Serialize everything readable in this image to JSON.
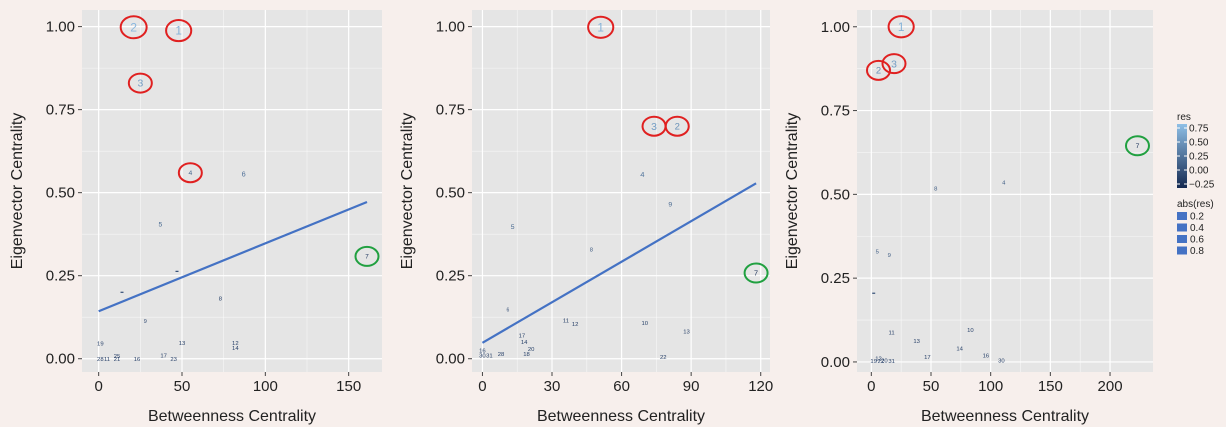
{
  "chart_data": [
    {
      "type": "scatter",
      "xlabel": "Betweenness Centrality",
      "ylabel": "Eigenvector Centrality",
      "xlim": [
        -10,
        170
      ],
      "ylim": [
        -0.04,
        1.05
      ],
      "x_ticks": [
        0,
        50,
        100,
        150
      ],
      "y_ticks": [
        0,
        0.25,
        0.5,
        0.75,
        1
      ],
      "grid": true,
      "trend_line": {
        "x": [
          0,
          161
        ],
        "y": [
          0.143,
          0.472
        ],
        "color": "#4472c4"
      },
      "points": [
        {
          "label": "2",
          "x": 21,
          "y": 0.998,
          "res": 0.8,
          "circle": "red"
        },
        {
          "label": "1",
          "x": 48,
          "y": 0.988,
          "res": 0.75,
          "circle": "red"
        },
        {
          "label": "3",
          "x": 25,
          "y": 0.83,
          "res": 0.6,
          "circle": "red"
        },
        {
          "label": "4",
          "x": 55,
          "y": 0.56,
          "res": 0.2,
          "circle": "red"
        },
        {
          "label": "6",
          "x": 87,
          "y": 0.557,
          "res": 0.25
        },
        {
          "label": "7",
          "x": 161,
          "y": 0.308,
          "res": -0.15,
          "circle": "green"
        },
        {
          "label": "5",
          "x": 37,
          "y": 0.405,
          "res": 0.2
        },
        {
          "label": "",
          "x": 47,
          "y": 0.263,
          "res": 0
        },
        {
          "label": "",
          "x": 14,
          "y": 0.2,
          "res": 0
        },
        {
          "label": "8",
          "x": 73,
          "y": 0.182,
          "res": -0.1
        },
        {
          "label": "9",
          "x": 28,
          "y": 0.113,
          "res": -0.05
        },
        {
          "label": "13",
          "x": 50,
          "y": 0.048,
          "res": -0.1
        },
        {
          "label": "12",
          "x": 82,
          "y": 0.048,
          "res": -0.1
        },
        {
          "label": "14",
          "x": 82,
          "y": 0.032,
          "res": -0.1
        },
        {
          "label": "19",
          "x": 1,
          "y": 0.046,
          "res": -0.1
        },
        {
          "label": "17",
          "x": 39,
          "y": 0.01,
          "res": -0.1
        },
        {
          "label": "16",
          "x": 23,
          "y": 0,
          "res": -0.1
        },
        {
          "label": "23",
          "x": 45,
          "y": 0,
          "res": -0.1
        },
        {
          "label": "21",
          "x": 11,
          "y": 0,
          "res": -0.1
        },
        {
          "label": "28",
          "x": 1,
          "y": 0,
          "res": -0.1
        },
        {
          "label": "11",
          "x": 5,
          "y": 0,
          "res": -0.1
        },
        {
          "label": "25",
          "x": 11,
          "y": 0.008,
          "res": -0.1
        }
      ]
    },
    {
      "type": "scatter",
      "xlabel": "Betweenness Centrality",
      "ylabel": "Eigenvector Centrality",
      "xlim": [
        -4.5,
        124
      ],
      "ylim": [
        -0.04,
        1.05
      ],
      "x_ticks": [
        0,
        30,
        60,
        90,
        120
      ],
      "y_ticks": [
        0,
        0.25,
        0.5,
        0.75,
        1
      ],
      "grid": true,
      "trend_line": {
        "x": [
          0,
          118
        ],
        "y": [
          0.048,
          0.528
        ],
        "color": "#4472c4"
      },
      "points": [
        {
          "label": "1",
          "x": 51,
          "y": 0.998,
          "res": 0.75,
          "circle": "red"
        },
        {
          "label": "3",
          "x": 74,
          "y": 0.7,
          "res": 0.6,
          "circle": "red"
        },
        {
          "label": "2",
          "x": 84,
          "y": 0.7,
          "res": 0.5,
          "circle": "red"
        },
        {
          "label": "4",
          "x": 69,
          "y": 0.555,
          "res": 0.3
        },
        {
          "label": "9",
          "x": 81,
          "y": 0.465,
          "res": 0.2
        },
        {
          "label": "5",
          "x": 13,
          "y": 0.398,
          "res": 0.2
        },
        {
          "label": "8",
          "x": 47,
          "y": 0.328,
          "res": 0.05
        },
        {
          "label": "7",
          "x": 118,
          "y": 0.258,
          "res": -0.25,
          "circle": "green"
        },
        {
          "label": "6",
          "x": 11,
          "y": 0.148,
          "res": 0
        },
        {
          "label": "11",
          "x": 36,
          "y": 0.115,
          "res": -0.1
        },
        {
          "label": "12",
          "x": 40,
          "y": 0.105,
          "res": -0.1
        },
        {
          "label": "10",
          "x": 70,
          "y": 0.108,
          "res": -0.1
        },
        {
          "label": "13",
          "x": 88,
          "y": 0.082,
          "res": -0.1
        },
        {
          "label": "17",
          "x": 17,
          "y": 0.07,
          "res": -0.1
        },
        {
          "label": "14",
          "x": 18,
          "y": 0.05,
          "res": -0.1
        },
        {
          "label": "20",
          "x": 21,
          "y": 0.03,
          "res": -0.1
        },
        {
          "label": "18",
          "x": 19,
          "y": 0.015,
          "res": -0.1
        },
        {
          "label": "22",
          "x": 78,
          "y": 0.005,
          "res": -0.1
        },
        {
          "label": "28",
          "x": 8,
          "y": 0.015,
          "res": -0.1
        },
        {
          "label": "16",
          "x": 0,
          "y": 0.025,
          "res": -0.1
        },
        {
          "label": "30",
          "x": 0,
          "y": 0.01,
          "res": -0.1
        },
        {
          "label": "31",
          "x": 3,
          "y": 0.01,
          "res": -0.1
        }
      ]
    },
    {
      "type": "scatter",
      "xlabel": "Betweenness Centrality",
      "ylabel": "Eigenvector Centrality",
      "xlim": [
        -12,
        236
      ],
      "ylim": [
        -0.03,
        1.05
      ],
      "x_ticks": [
        0,
        50,
        100,
        150,
        200
      ],
      "y_ticks": [
        0,
        0.25,
        0.5,
        0.75,
        1
      ],
      "grid": true,
      "points": [
        {
          "label": "1",
          "x": 25,
          "y": 1.0,
          "res": 0.75,
          "circle": "red"
        },
        {
          "label": "3",
          "x": 19,
          "y": 0.89,
          "res": 0.6,
          "circle": "red"
        },
        {
          "label": "2",
          "x": 6,
          "y": 0.87,
          "res": 0.5,
          "circle": "red"
        },
        {
          "label": "7",
          "x": 223,
          "y": 0.645,
          "res": -0.2,
          "circle": "green"
        },
        {
          "label": "4",
          "x": 111,
          "y": 0.535,
          "res": 0.1
        },
        {
          "label": "8",
          "x": 54,
          "y": 0.517,
          "res": 0.1
        },
        {
          "label": "5",
          "x": 5,
          "y": 0.33,
          "res": 0.1
        },
        {
          "label": "9",
          "x": 15,
          "y": 0.32,
          "res": 0.1
        },
        {
          "label": "",
          "x": 2,
          "y": 0.205,
          "res": 0
        },
        {
          "label": "11",
          "x": 17,
          "y": 0.088,
          "res": -0.1
        },
        {
          "label": "10",
          "x": 83,
          "y": 0.095,
          "res": -0.1
        },
        {
          "label": "13",
          "x": 38,
          "y": 0.063,
          "res": -0.1
        },
        {
          "label": "14",
          "x": 74,
          "y": 0.04,
          "res": -0.1
        },
        {
          "label": "17",
          "x": 47,
          "y": 0.015,
          "res": -0.1
        },
        {
          "label": "16",
          "x": 96,
          "y": 0.02,
          "res": -0.1
        },
        {
          "label": "30",
          "x": 109,
          "y": 0.005,
          "res": -0.1
        },
        {
          "label": "31",
          "x": 17,
          "y": 0.003,
          "res": -0.1
        },
        {
          "label": "19",
          "x": 2,
          "y": 0.003,
          "res": -0.1
        },
        {
          "label": "20",
          "x": 11,
          "y": 0.005,
          "res": -0.1
        },
        {
          "label": "22",
          "x": 8,
          "y": 0.003,
          "res": -0.1
        },
        {
          "label": "12",
          "x": 6,
          "y": 0.01,
          "res": -0.1
        }
      ]
    }
  ],
  "legend": {
    "res_title": "res",
    "res_ticks": [
      "0.75",
      "0.50",
      "0.25",
      "0.00",
      "−0.25"
    ],
    "res_range": [
      -0.3,
      0.85
    ],
    "abs_title": "abs(res)",
    "abs_items": [
      "0.2",
      "0.4",
      "0.6",
      "0.8"
    ]
  },
  "colors": {
    "background": "#f7efec",
    "panel": "#e5e5e5",
    "grid": "#ffffff",
    "trend": "#4472c4",
    "circle_red": "#e02020",
    "circle_green": "#20a040",
    "res_high": "#8fbfe6",
    "res_low": "#142850"
  }
}
